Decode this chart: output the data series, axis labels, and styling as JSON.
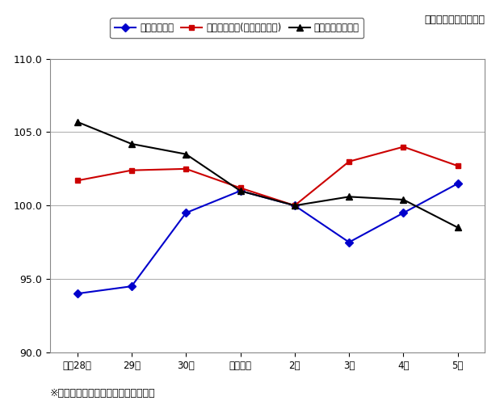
{
  "title_top_right": "（令和２年＝１００）",
  "footnote": "※調査産業計（事業所規模５人以上）",
  "x_labels": [
    "平成28年",
    "29年",
    "30年",
    "令和元年",
    "2年",
    "3年",
    "4年",
    "5年"
  ],
  "x_positions": [
    0,
    1,
    2,
    3,
    4,
    5,
    6,
    7
  ],
  "series": [
    {
      "label": "常用雇用指数",
      "color": "#0000cc",
      "marker": "D",
      "markersize": 5,
      "values": [
        94.0,
        94.5,
        99.5,
        101.0,
        100.0,
        97.5,
        99.5,
        101.5
      ]
    },
    {
      "label": "名目賃金指数(現金給与総額)",
      "color": "#cc0000",
      "marker": "s",
      "markersize": 5,
      "values": [
        101.7,
        102.4,
        102.5,
        101.2,
        100.0,
        103.0,
        104.0,
        102.7
      ]
    },
    {
      "label": "総実労働時間指数",
      "color": "#000000",
      "marker": "^",
      "markersize": 6,
      "values": [
        105.7,
        104.2,
        103.5,
        101.0,
        100.0,
        100.6,
        100.4,
        98.5
      ]
    }
  ],
  "ylim": [
    90.0,
    110.0
  ],
  "yticks": [
    90.0,
    95.0,
    100.0,
    105.0,
    110.0
  ],
  "ylabel_fontsize": 9,
  "xlabel_fontsize": 8.5,
  "legend_fontsize": 8.5,
  "title_fontsize": 9,
  "footnote_fontsize": 9,
  "grid_color": "#aaaaaa",
  "background_color": "#ffffff",
  "plot_bg_color": "#ffffff"
}
